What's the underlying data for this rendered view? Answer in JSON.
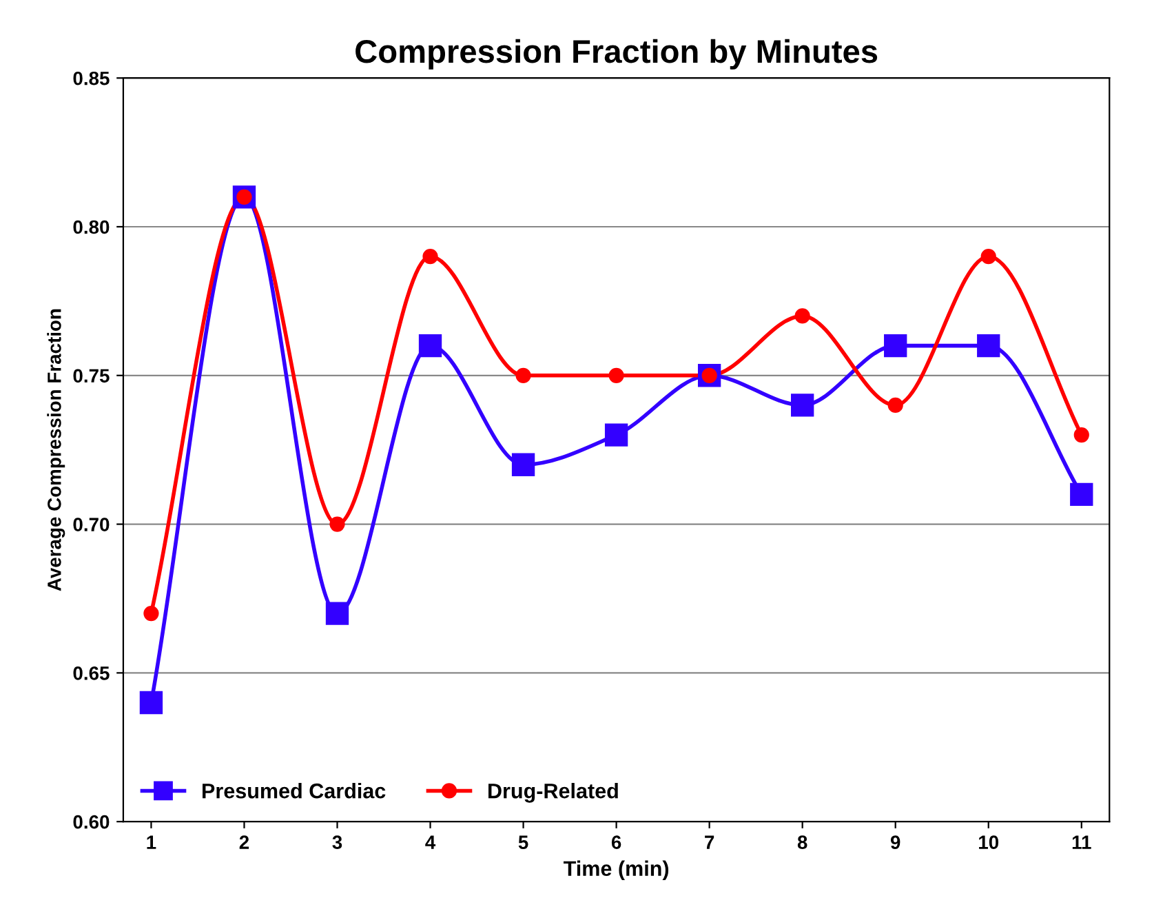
{
  "chart_data": {
    "type": "line",
    "title": "Compression Fraction by Minutes",
    "xlabel": "Time (min)",
    "ylabel": "Average Compression Fraction",
    "x": [
      1,
      2,
      3,
      4,
      5,
      6,
      7,
      8,
      9,
      10,
      11
    ],
    "series": [
      {
        "name": "Presumed Cardiac",
        "color": "#3300ff",
        "marker": "square",
        "values": [
          0.64,
          0.81,
          0.67,
          0.76,
          0.72,
          0.73,
          0.75,
          0.74,
          0.76,
          0.76,
          0.71
        ]
      },
      {
        "name": "Drug-Related",
        "color": "#ff0000",
        "marker": "circle",
        "values": [
          0.67,
          0.81,
          0.7,
          0.79,
          0.75,
          0.75,
          0.75,
          0.77,
          0.74,
          0.79,
          0.73
        ]
      }
    ],
    "xlim": [
      0.7,
      11.3
    ],
    "xticks": [
      1,
      2,
      3,
      4,
      5,
      6,
      7,
      8,
      9,
      10,
      11
    ],
    "ylim": [
      0.6,
      0.85
    ],
    "yticks": [
      {
        "value": 0.6,
        "label": "0.60"
      },
      {
        "value": 0.65,
        "label": "0.65"
      },
      {
        "value": 0.7,
        "label": "0.70"
      },
      {
        "value": 0.75,
        "label": "0.75"
      },
      {
        "value": 0.8,
        "label": "0.80"
      },
      {
        "value": 0.85,
        "label": "0.85"
      }
    ],
    "grid": "y",
    "legend": "bottom left",
    "line_style": "solid"
  }
}
